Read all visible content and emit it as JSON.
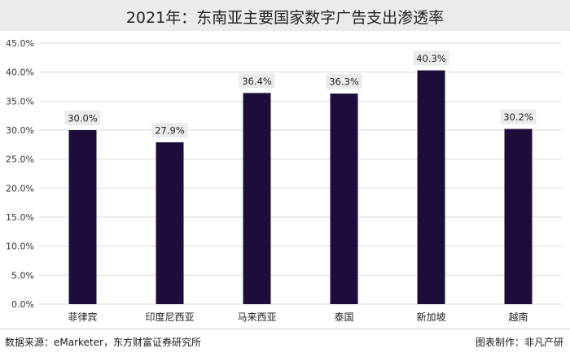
{
  "chart_data": {
    "type": "bar",
    "title": "2021年：东南亚主要国家数字广告支出渗透率",
    "categories": [
      "菲律宾",
      "印度尼西亚",
      "马来西亚",
      "泰国",
      "新加坡",
      "越南"
    ],
    "values": [
      30.0,
      27.9,
      36.4,
      36.3,
      40.3,
      30.2
    ],
    "value_labels": [
      "30.0%",
      "27.9%",
      "36.4%",
      "36.3%",
      "40.3%",
      "30.2%"
    ],
    "ylim": [
      0,
      45
    ],
    "yticks": [
      0,
      5,
      10,
      15,
      20,
      25,
      30,
      35,
      40,
      45
    ],
    "ytick_labels": [
      "0.0%",
      "5.0%",
      "10.0%",
      "15.0%",
      "20.0%",
      "25.0%",
      "30.0%",
      "35.0%",
      "40.0%",
      "45.0%"
    ],
    "xlabel": "",
    "ylabel": "",
    "grid": true,
    "bar_color": "#1c0d3a",
    "label_bg_color": "#ebebeb"
  },
  "footer": {
    "source": "数据来源：eMarketer，东方财富证券研究所",
    "credit": "图表制作：非凡产研"
  }
}
